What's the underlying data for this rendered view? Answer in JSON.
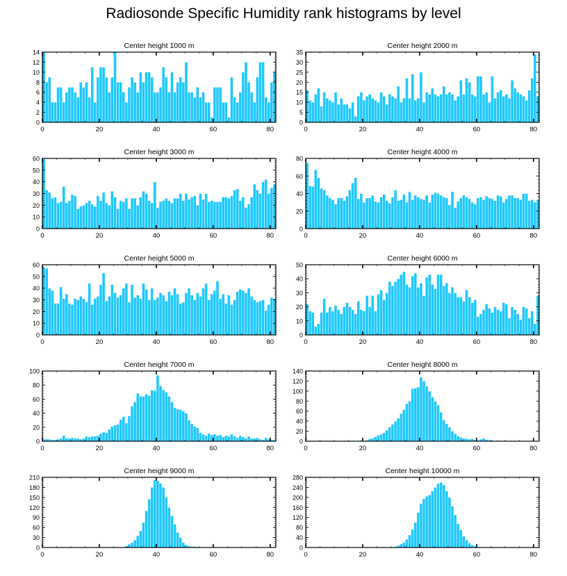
{
  "figure": {
    "title": "Radiosonde Specific Humidity rank histograms by level",
    "bar_color": "#1ec8ff",
    "bar_edge_color": "#ffffff",
    "axis_color": "#000000"
  },
  "chart_data": [
    {
      "type": "bar",
      "title": "Center height 1000 m",
      "xlabel": "",
      "ylabel": "",
      "xlim": [
        0,
        82
      ],
      "ylim": [
        0,
        14
      ],
      "xticks": [
        0,
        20,
        40,
        60,
        80
      ],
      "yticks": [
        0,
        2,
        4,
        6,
        8,
        10,
        12,
        14
      ],
      "values": [
        14,
        8,
        9,
        4,
        4,
        7,
        7,
        4,
        6,
        7,
        7,
        6,
        5,
        8,
        7,
        8,
        5,
        11,
        4,
        9,
        11,
        11,
        9,
        6,
        9,
        14,
        8,
        8,
        6,
        4,
        7,
        9,
        8,
        6,
        10,
        8,
        10,
        10,
        9,
        6,
        6,
        7,
        11,
        9,
        6,
        10,
        6,
        8,
        9,
        8,
        12,
        6,
        6,
        5,
        7,
        5,
        6,
        4,
        4,
        1,
        7,
        7,
        7,
        4,
        4,
        1,
        9,
        5,
        4,
        6,
        10,
        12,
        8,
        6,
        4,
        9,
        12,
        12,
        5,
        4,
        8,
        10
      ]
    },
    {
      "type": "bar",
      "title": "Center height 2000 m",
      "xlabel": "",
      "ylabel": "",
      "xlim": [
        0,
        82
      ],
      "ylim": [
        0,
        35
      ],
      "xticks": [
        0,
        20,
        40,
        60,
        80
      ],
      "yticks": [
        0,
        5,
        10,
        15,
        20,
        25,
        30,
        35
      ],
      "values": [
        16,
        11,
        10,
        14,
        17,
        8,
        15,
        12,
        11,
        10,
        15,
        9,
        12,
        9,
        9,
        7,
        10,
        3,
        13,
        15,
        11,
        13,
        14,
        12,
        11,
        10,
        15,
        13,
        9,
        14,
        13,
        12,
        18,
        10,
        12,
        22,
        12,
        24,
        11,
        12,
        25,
        10,
        15,
        14,
        17,
        14,
        13,
        14,
        18,
        14,
        15,
        14,
        11,
        13,
        21,
        14,
        22,
        20,
        14,
        13,
        23,
        23,
        14,
        15,
        10,
        23,
        12,
        15,
        16,
        13,
        14,
        12,
        21,
        17,
        15,
        14,
        13,
        11,
        16,
        22,
        34,
        13
      ]
    },
    {
      "type": "bar",
      "title": "Center height 3000 m",
      "xlabel": "",
      "ylabel": "",
      "xlim": [
        0,
        82
      ],
      "ylim": [
        0,
        60
      ],
      "xticks": [
        0,
        20,
        40,
        60,
        80
      ],
      "yticks": [
        0,
        10,
        20,
        30,
        40,
        50,
        60
      ],
      "values": [
        60,
        33,
        31,
        26,
        27,
        22,
        23,
        36,
        22,
        24,
        29,
        28,
        17,
        19,
        20,
        22,
        24,
        21,
        19,
        28,
        24,
        31,
        22,
        20,
        32,
        27,
        17,
        24,
        23,
        26,
        17,
        26,
        26,
        20,
        27,
        32,
        30,
        24,
        22,
        40,
        18,
        23,
        24,
        26,
        24,
        22,
        26,
        26,
        30,
        24,
        30,
        25,
        27,
        28,
        20,
        30,
        25,
        30,
        23,
        24,
        23,
        23,
        23,
        27,
        27,
        26,
        28,
        33,
        34,
        24,
        27,
        18,
        21,
        27,
        38,
        33,
        30,
        40,
        42,
        30,
        35,
        38
      ]
    },
    {
      "type": "bar",
      "title": "Center height 4000 m",
      "xlabel": "",
      "ylabel": "",
      "xlim": [
        0,
        82
      ],
      "ylim": [
        0,
        80
      ],
      "xticks": [
        0,
        20,
        40,
        60,
        80
      ],
      "yticks": [
        0,
        20,
        40,
        60,
        80
      ],
      "values": [
        75,
        49,
        48,
        67,
        58,
        46,
        44,
        38,
        35,
        33,
        28,
        35,
        35,
        32,
        37,
        44,
        52,
        58,
        34,
        40,
        30,
        35,
        35,
        38,
        31,
        30,
        36,
        39,
        32,
        29,
        36,
        44,
        32,
        33,
        39,
        30,
        42,
        33,
        38,
        36,
        34,
        33,
        38,
        30,
        39,
        41,
        40,
        38,
        36,
        35,
        27,
        42,
        24,
        31,
        35,
        38,
        36,
        34,
        30,
        28,
        35,
        36,
        33,
        37,
        35,
        34,
        32,
        38,
        37,
        30,
        34,
        38,
        38,
        35,
        35,
        33,
        40,
        40,
        32,
        33,
        30,
        33
      ]
    },
    {
      "type": "bar",
      "title": "Center height 5000 m",
      "xlabel": "",
      "ylabel": "",
      "xlim": [
        0,
        82
      ],
      "ylim": [
        0,
        60
      ],
      "xticks": [
        0,
        20,
        40,
        60,
        80
      ],
      "yticks": [
        0,
        10,
        20,
        30,
        40,
        50,
        60
      ],
      "values": [
        58,
        57,
        40,
        38,
        27,
        27,
        41,
        31,
        35,
        27,
        26,
        31,
        30,
        33,
        31,
        28,
        44,
        26,
        31,
        33,
        43,
        53,
        29,
        33,
        43,
        36,
        32,
        34,
        40,
        44,
        28,
        43,
        32,
        34,
        31,
        44,
        39,
        30,
        40,
        30,
        32,
        36,
        34,
        29,
        37,
        34,
        40,
        35,
        27,
        28,
        36,
        40,
        34,
        30,
        36,
        33,
        40,
        44,
        30,
        35,
        38,
        46,
        31,
        35,
        27,
        34,
        26,
        30,
        37,
        39,
        38,
        36,
        40,
        33,
        30,
        28,
        29,
        30,
        21,
        26,
        32,
        31
      ]
    },
    {
      "type": "bar",
      "title": "Center height 6000 m",
      "xlabel": "",
      "ylabel": "",
      "xlim": [
        0,
        82
      ],
      "ylim": [
        0,
        50
      ],
      "xticks": [
        0,
        20,
        40,
        60,
        80
      ],
      "yticks": [
        0,
        10,
        20,
        30,
        40,
        50
      ],
      "values": [
        22,
        17,
        16,
        6,
        8,
        16,
        26,
        16,
        20,
        17,
        21,
        18,
        15,
        20,
        23,
        20,
        18,
        15,
        24,
        18,
        17,
        28,
        20,
        28,
        17,
        29,
        32,
        25,
        30,
        38,
        35,
        38,
        40,
        43,
        45,
        36,
        34,
        42,
        44,
        34,
        37,
        28,
        41,
        43,
        36,
        33,
        43,
        43,
        35,
        37,
        30,
        34,
        30,
        27,
        27,
        24,
        32,
        27,
        23,
        25,
        13,
        15,
        18,
        22,
        19,
        16,
        20,
        18,
        17,
        23,
        22,
        12,
        20,
        18,
        15,
        11,
        20,
        19,
        12,
        17,
        8,
        28
      ]
    },
    {
      "type": "bar",
      "title": "Center height 7000 m",
      "xlabel": "",
      "ylabel": "",
      "xlim": [
        0,
        82
      ],
      "ylim": [
        0,
        100
      ],
      "xticks": [
        0,
        20,
        40,
        60,
        80
      ],
      "yticks": [
        0,
        20,
        40,
        60,
        80,
        100
      ],
      "values": [
        3,
        3,
        3,
        2,
        2,
        3,
        4,
        8,
        4,
        4,
        5,
        4,
        4,
        3,
        4,
        7,
        6,
        7,
        7,
        8,
        11,
        13,
        12,
        17,
        21,
        23,
        24,
        31,
        35,
        26,
        36,
        50,
        56,
        68,
        64,
        64,
        67,
        65,
        73,
        72,
        94,
        79,
        73,
        70,
        64,
        56,
        48,
        46,
        45,
        43,
        40,
        30,
        25,
        21,
        19,
        12,
        10,
        8,
        11,
        9,
        10,
        8,
        9,
        6,
        8,
        7,
        10,
        7,
        5,
        8,
        6,
        4,
        7,
        4,
        4,
        5,
        3,
        2,
        5,
        3,
        2,
        2
      ]
    },
    {
      "type": "bar",
      "title": "Center height 8000 m",
      "xlabel": "",
      "ylabel": "",
      "xlim": [
        0,
        82
      ],
      "ylim": [
        0,
        140
      ],
      "xticks": [
        0,
        20,
        40,
        60,
        80
      ],
      "yticks": [
        0,
        20,
        40,
        60,
        80,
        100,
        120,
        140
      ],
      "values": [
        0,
        0,
        0,
        0,
        0,
        0,
        0,
        0,
        0,
        0,
        0,
        0,
        0,
        0,
        0,
        0,
        0,
        0,
        1,
        2,
        1,
        2,
        5,
        6,
        9,
        12,
        14,
        17,
        22,
        28,
        34,
        40,
        46,
        55,
        63,
        75,
        80,
        105,
        106,
        108,
        128,
        120,
        110,
        100,
        88,
        80,
        72,
        58,
        42,
        35,
        28,
        20,
        15,
        10,
        8,
        6,
        5,
        4,
        5,
        3,
        2,
        4,
        6,
        3,
        2,
        2,
        1,
        2,
        1,
        1,
        1,
        1,
        0,
        0,
        1,
        0,
        0,
        1,
        0,
        0,
        1,
        0
      ]
    },
    {
      "type": "bar",
      "title": "Center height 9000 m",
      "xlabel": "",
      "ylabel": "",
      "xlim": [
        0,
        82
      ],
      "ylim": [
        0,
        210
      ],
      "xticks": [
        0,
        20,
        40,
        60,
        80
      ],
      "yticks": [
        0,
        30,
        60,
        90,
        120,
        150,
        180,
        210
      ],
      "values": [
        0,
        0,
        0,
        0,
        0,
        0,
        0,
        0,
        0,
        0,
        0,
        0,
        0,
        0,
        0,
        0,
        0,
        0,
        0,
        0,
        0,
        0,
        0,
        0,
        0,
        0,
        0,
        1,
        2,
        5,
        10,
        15,
        22,
        35,
        50,
        75,
        110,
        145,
        180,
        202,
        200,
        192,
        180,
        150,
        120,
        95,
        70,
        45,
        30,
        15,
        8,
        5,
        3,
        3,
        2,
        1,
        1,
        1,
        0,
        0,
        0,
        0,
        0,
        0,
        0,
        0,
        0,
        0,
        0,
        0,
        1,
        0,
        0,
        0,
        0,
        0,
        0,
        0,
        0,
        0,
        0,
        0
      ]
    },
    {
      "type": "bar",
      "title": "Center height 10000 m",
      "xlabel": "",
      "ylabel": "",
      "xlim": [
        0,
        82
      ],
      "ylim": [
        0,
        280
      ],
      "xticks": [
        0,
        20,
        40,
        60,
        80
      ],
      "yticks": [
        0,
        40,
        80,
        120,
        160,
        200,
        240,
        280
      ],
      "values": [
        0,
        0,
        0,
        0,
        0,
        0,
        0,
        0,
        0,
        0,
        0,
        0,
        0,
        0,
        0,
        0,
        0,
        0,
        0,
        0,
        0,
        0,
        0,
        0,
        0,
        0,
        0,
        0,
        0,
        1,
        2,
        4,
        8,
        14,
        20,
        32,
        50,
        72,
        100,
        140,
        175,
        195,
        205,
        210,
        225,
        240,
        255,
        260,
        250,
        225,
        200,
        165,
        130,
        95,
        70,
        45,
        30,
        18,
        10,
        6,
        3,
        2,
        1,
        1,
        0,
        0,
        0,
        0,
        0,
        0,
        0,
        0,
        0,
        0,
        0,
        0,
        0,
        0,
        0,
        0,
        0,
        0
      ]
    }
  ]
}
